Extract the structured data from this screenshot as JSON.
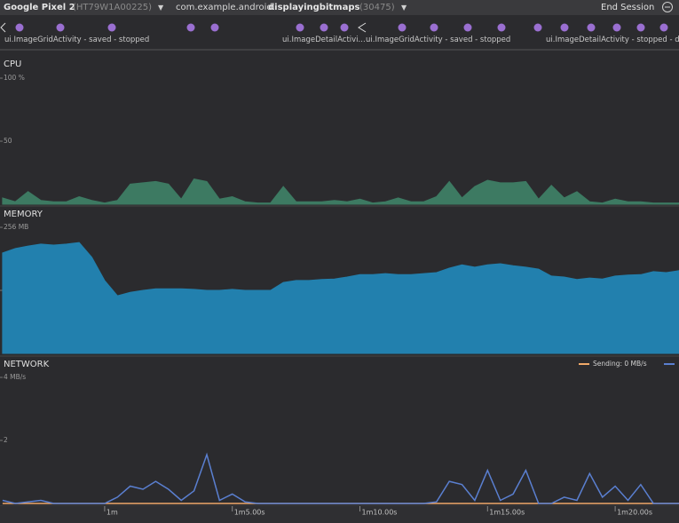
{
  "toolbar": {
    "device": "Google Pixel 2",
    "device_id": "(HT79W1A00225)",
    "package": "com.example.android.",
    "app": "displayingbitmaps",
    "pid": "(30475)",
    "end_session": "End Session"
  },
  "events": {
    "labels": [
      "ui.ImageGridActivity - saved - stopped",
      "ui.ImageDetailActivi...",
      "ui.ImageGridActivity - saved - stopped",
      "ui.ImageDetailActivity - stopped - d"
    ]
  },
  "chart_data": [
    {
      "type": "area",
      "title": "CPU",
      "color": "#3d7a62",
      "x": [
        56,
        56.5,
        57,
        57.5,
        58,
        58.5,
        59,
        59.5,
        60,
        60.5,
        61,
        61.5,
        62,
        62.5,
        63,
        63.5,
        64,
        64.5,
        65,
        65.5,
        66,
        66.5,
        67,
        67.5,
        68,
        68.5,
        69,
        69.5,
        70,
        70.5,
        71,
        71.5,
        72,
        72.5,
        73,
        73.5,
        74,
        74.5,
        75,
        75.5,
        76,
        76.5,
        77,
        77.5,
        78,
        78.5,
        79,
        79.5,
        80,
        80.5,
        81,
        81.5,
        82,
        82.5
      ],
      "values": [
        5,
        2,
        10,
        3,
        2,
        2,
        6,
        3,
        1,
        3,
        16,
        17,
        18,
        16,
        4,
        20,
        18,
        4,
        6,
        2,
        1,
        1,
        14,
        2,
        2,
        2,
        3,
        2,
        4,
        1,
        2,
        5,
        2,
        2,
        6,
        18,
        5,
        14,
        19,
        17,
        17,
        18,
        4,
        15,
        5,
        10,
        2,
        1,
        4,
        2,
        2,
        1,
        1,
        1
      ],
      "xlim": [
        55.9,
        82.5
      ],
      "ylim": [
        0,
        100
      ],
      "yticks": [
        {
          "value": 100,
          "label": "100 %"
        },
        50
      ]
    },
    {
      "type": "area",
      "title": "MEMORY",
      "color": "#2280ae",
      "x": [
        56,
        56.5,
        57,
        57.5,
        58,
        58.5,
        59,
        59.5,
        60,
        60.5,
        61,
        61.5,
        62,
        62.5,
        63,
        63.5,
        64,
        64.5,
        65,
        65.5,
        66,
        66.5,
        67,
        67.5,
        68,
        68.5,
        69,
        69.5,
        70,
        70.5,
        71,
        71.5,
        72,
        72.5,
        73,
        73.5,
        74,
        74.5,
        75,
        75.5,
        76,
        76.5,
        77,
        77.5,
        78,
        78.5,
        79,
        79.5,
        80,
        80.5,
        81,
        81.5,
        82,
        82.5
      ],
      "values": [
        204,
        213,
        218,
        222,
        220,
        222,
        225,
        195,
        148,
        117,
        124,
        128,
        131,
        131,
        131,
        130,
        128,
        128,
        130,
        128,
        128,
        128,
        144,
        148,
        148,
        150,
        151,
        155,
        160,
        160,
        162,
        160,
        160,
        162,
        164,
        173,
        180,
        175,
        180,
        182,
        178,
        175,
        171,
        157,
        155,
        150,
        153,
        151,
        157,
        159,
        160,
        166,
        164,
        168
      ],
      "xlim": [
        55.9,
        82.5
      ],
      "ylim": [
        0,
        256
      ],
      "yticks": [
        {
          "value": 256,
          "label": "256 MB"
        },
        128
      ]
    },
    {
      "type": "line",
      "title": "NETWORK",
      "x": [
        56,
        56.5,
        57,
        57.5,
        58,
        58.5,
        59,
        59.5,
        60,
        60.5,
        61,
        61.5,
        62,
        62.5,
        63,
        63.5,
        64,
        64.5,
        65,
        65.5,
        66,
        66.5,
        67,
        67.5,
        68,
        68.5,
        69,
        69.5,
        70,
        70.5,
        71,
        71.5,
        72,
        72.5,
        73,
        73.5,
        74,
        74.5,
        75,
        75.5,
        76,
        76.5,
        77,
        77.5,
        78,
        78.5,
        79,
        79.5,
        80,
        80.5,
        81,
        81.5,
        82,
        82.5
      ],
      "series": [
        {
          "name": "Sending: 0 MB/s",
          "color": "#f0a868",
          "values": [
            0,
            0,
            0,
            0,
            0,
            0,
            0,
            0,
            0,
            0,
            0,
            0,
            0,
            0,
            0,
            0,
            0,
            0,
            0,
            0,
            0,
            0,
            0,
            0,
            0,
            0,
            0,
            0,
            0,
            0,
            0,
            0,
            0,
            0,
            0,
            0,
            0,
            0,
            0,
            0,
            0,
            0,
            0,
            0,
            0,
            0,
            0,
            0,
            0,
            0,
            0,
            0,
            0,
            0
          ]
        },
        {
          "color": "#5a7fd0",
          "values": [
            0.1,
            0,
            0.05,
            0.1,
            0,
            0,
            0,
            0,
            0,
            0.2,
            0.55,
            0.45,
            0.7,
            0.45,
            0.1,
            0.4,
            1.55,
            0.1,
            0.3,
            0.05,
            0,
            0,
            0,
            0,
            0,
            0,
            0,
            0,
            0,
            0,
            0,
            0,
            0,
            0,
            0.05,
            0.7,
            0.6,
            0.1,
            1.05,
            0.1,
            0.3,
            1.05,
            0,
            0,
            0.2,
            0.1,
            0.95,
            0.2,
            0.55,
            0.1,
            0.6,
            0,
            0,
            0
          ]
        }
      ],
      "xlim": [
        55.9,
        82.5
      ],
      "ylim": [
        0,
        4
      ],
      "yticks": [
        {
          "value": 4,
          "label": "4 MB/s"
        },
        2
      ],
      "xticks": [
        {
          "value": 60,
          "label": "1m"
        },
        {
          "value": 65,
          "label": "1m5.00s"
        },
        {
          "value": 70,
          "label": "1m10.00s"
        },
        {
          "value": 75,
          "label": "1m15.00s"
        },
        {
          "value": 80,
          "label": "1m20.00s"
        }
      ]
    }
  ]
}
